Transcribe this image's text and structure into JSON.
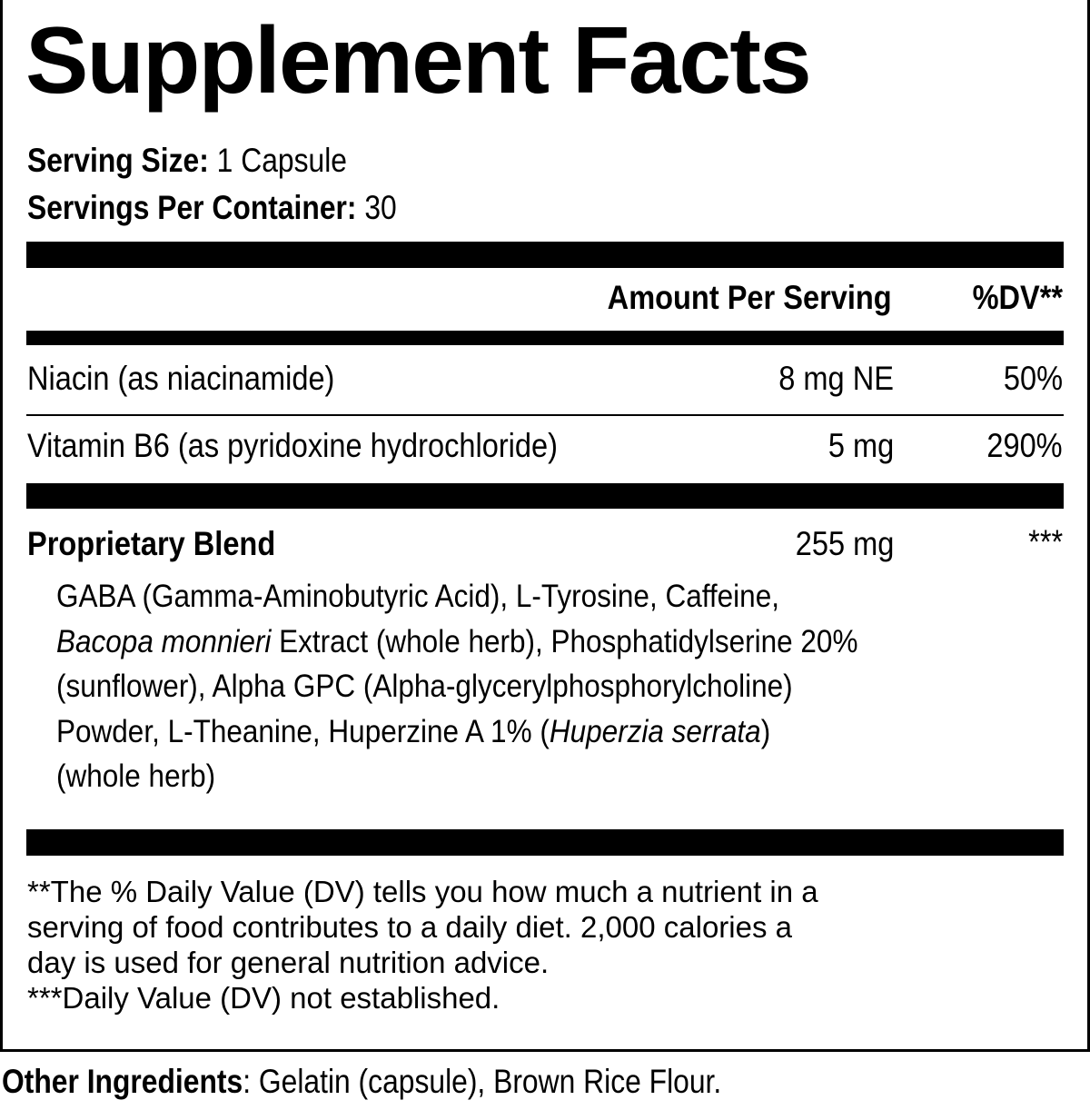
{
  "title": "Supplement Facts",
  "serving_size": {
    "label": "Serving Size:",
    "value": "1 Capsule"
  },
  "servings_per_container": {
    "label": "Servings Per Container:",
    "value": "30"
  },
  "header": {
    "amount": "Amount Per Serving",
    "dv": "%DV**"
  },
  "nutrients": [
    {
      "name": "Niacin (as niacinamide)",
      "amount": "8 mg NE",
      "dv": "50%"
    },
    {
      "name": "Vitamin B6 (as pyridoxine hydrochloride)",
      "amount": "5 mg",
      "dv": "290%"
    }
  ],
  "blend": {
    "name": "Proprietary Blend",
    "amount": "255 mg",
    "dv": "***",
    "line1": "GABA (Gamma-Aminobutyric Acid), L-Tyrosine, Caffeine,",
    "line2_italic": "Bacopa monnieri",
    "line2_rest": " Extract (whole herb), Phosphatidylserine 20%",
    "line3": "(sunflower), Alpha GPC (Alpha-glycerylphosphorylcholine)",
    "line4_start": "Powder, L-Theanine, Huperzine A 1% (",
    "line4_italic": "Huperzia serrata",
    "line4_end": ")",
    "line5": "(whole herb)"
  },
  "footnotes": [
    "**The % Daily Value (DV) tells you how much a nutrient in a",
    "serving of food contributes to a daily diet. 2,000 calories a",
    "day is used for general nutrition advice.",
    "***Daily Value (DV) not established."
  ],
  "other_ingredients": {
    "label": "Other Ingredients",
    "value": ": Gelatin (capsule), Brown Rice Flour."
  }
}
